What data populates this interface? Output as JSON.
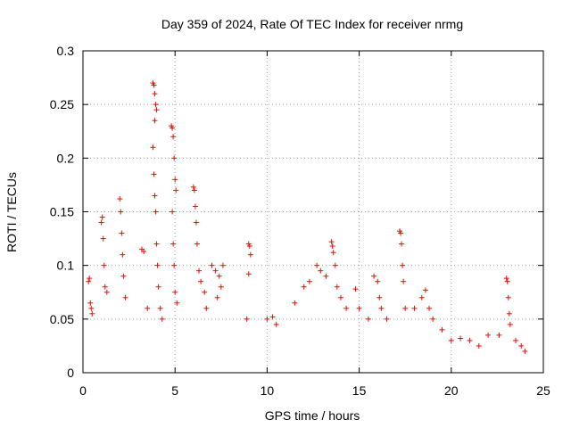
{
  "chart_data": {
    "type": "scatter",
    "title": "Day 359 of 2024, Rate Of TEC Index for receiver nrmg",
    "xlabel": "GPS time / hours",
    "ylabel": "ROTI / TECUs",
    "xlim": [
      0,
      25
    ],
    "ylim": [
      0,
      0.3
    ],
    "xticks": [
      0,
      5,
      10,
      15,
      20,
      25
    ],
    "xtick_labels": [
      "0",
      "5",
      "10",
      "15",
      "20",
      "25"
    ],
    "yticks": [
      0,
      0.05,
      0.1,
      0.15,
      0.2,
      0.25,
      0.3
    ],
    "ytick_labels": [
      "0",
      "0.05",
      "0.1",
      "0.15",
      "0.2",
      "0.25",
      "0.3"
    ],
    "grid": true,
    "marker": "+",
    "color": "#ff0000",
    "series": [
      {
        "name": "ROTI",
        "points": [
          [
            0.3,
            0.085
          ],
          [
            0.35,
            0.088
          ],
          [
            0.4,
            0.065
          ],
          [
            0.45,
            0.06
          ],
          [
            0.5,
            0.055
          ],
          [
            1.0,
            0.14
          ],
          [
            1.05,
            0.145
          ],
          [
            1.1,
            0.125
          ],
          [
            1.15,
            0.1
          ],
          [
            1.2,
            0.08
          ],
          [
            1.3,
            0.075
          ],
          [
            2.0,
            0.162
          ],
          [
            2.05,
            0.15
          ],
          [
            2.1,
            0.13
          ],
          [
            2.15,
            0.11
          ],
          [
            2.2,
            0.09
          ],
          [
            2.3,
            0.07
          ],
          [
            3.2,
            0.115
          ],
          [
            3.3,
            0.113
          ],
          [
            3.5,
            0.06
          ],
          [
            3.8,
            0.27
          ],
          [
            3.85,
            0.268
          ],
          [
            3.9,
            0.26
          ],
          [
            3.95,
            0.25
          ],
          [
            4.0,
            0.245
          ],
          [
            3.9,
            0.235
          ],
          [
            3.8,
            0.21
          ],
          [
            3.85,
            0.185
          ],
          [
            3.9,
            0.165
          ],
          [
            3.95,
            0.15
          ],
          [
            4.0,
            0.12
          ],
          [
            4.05,
            0.1
          ],
          [
            4.1,
            0.08
          ],
          [
            4.2,
            0.06
          ],
          [
            4.3,
            0.05
          ],
          [
            4.8,
            0.23
          ],
          [
            4.85,
            0.228
          ],
          [
            4.9,
            0.22
          ],
          [
            4.95,
            0.2
          ],
          [
            5.0,
            0.18
          ],
          [
            5.05,
            0.17
          ],
          [
            4.85,
            0.15
          ],
          [
            4.9,
            0.12
          ],
          [
            4.95,
            0.1
          ],
          [
            5.0,
            0.075
          ],
          [
            5.1,
            0.065
          ],
          [
            6.0,
            0.173
          ],
          [
            6.05,
            0.17
          ],
          [
            6.1,
            0.155
          ],
          [
            6.15,
            0.14
          ],
          [
            6.2,
            0.12
          ],
          [
            6.3,
            0.095
          ],
          [
            6.4,
            0.085
          ],
          [
            6.6,
            0.075
          ],
          [
            6.7,
            0.06
          ],
          [
            7.0,
            0.1
          ],
          [
            7.2,
            0.095
          ],
          [
            7.4,
            0.09
          ],
          [
            7.6,
            0.1
          ],
          [
            7.5,
            0.08
          ],
          [
            7.3,
            0.07
          ],
          [
            9.0,
            0.12
          ],
          [
            9.05,
            0.118
          ],
          [
            9.1,
            0.11
          ],
          [
            9.0,
            0.092
          ],
          [
            8.9,
            0.05
          ],
          [
            10.0,
            0.05
          ],
          [
            10.3,
            0.052
          ],
          [
            10.5,
            0.045
          ],
          [
            11.5,
            0.065
          ],
          [
            12.0,
            0.08
          ],
          [
            12.3,
            0.085
          ],
          [
            12.7,
            0.1
          ],
          [
            12.9,
            0.095
          ],
          [
            13.2,
            0.09
          ],
          [
            13.5,
            0.122
          ],
          [
            13.55,
            0.118
          ],
          [
            13.6,
            0.112
          ],
          [
            13.7,
            0.1
          ],
          [
            13.8,
            0.08
          ],
          [
            14.0,
            0.07
          ],
          [
            14.3,
            0.06
          ],
          [
            14.8,
            0.078
          ],
          [
            15.0,
            0.06
          ],
          [
            15.5,
            0.05
          ],
          [
            15.8,
            0.09
          ],
          [
            16.0,
            0.085
          ],
          [
            16.1,
            0.07
          ],
          [
            16.2,
            0.06
          ],
          [
            16.5,
            0.05
          ],
          [
            17.2,
            0.132
          ],
          [
            17.25,
            0.13
          ],
          [
            17.3,
            0.12
          ],
          [
            17.35,
            0.1
          ],
          [
            17.4,
            0.085
          ],
          [
            17.5,
            0.06
          ],
          [
            18.0,
            0.06
          ],
          [
            18.4,
            0.07
          ],
          [
            18.6,
            0.077
          ],
          [
            18.8,
            0.06
          ],
          [
            19.0,
            0.05
          ],
          [
            19.5,
            0.04
          ],
          [
            20.0,
            0.03
          ],
          [
            20.5,
            0.032
          ],
          [
            21.0,
            0.03
          ],
          [
            21.5,
            0.025
          ],
          [
            22.0,
            0.035
          ],
          [
            22.6,
            0.035
          ],
          [
            23.0,
            0.088
          ],
          [
            23.05,
            0.085
          ],
          [
            23.1,
            0.07
          ],
          [
            23.15,
            0.055
          ],
          [
            23.2,
            0.045
          ],
          [
            23.5,
            0.03
          ],
          [
            23.8,
            0.025
          ],
          [
            24.0,
            0.02
          ]
        ]
      }
    ]
  }
}
